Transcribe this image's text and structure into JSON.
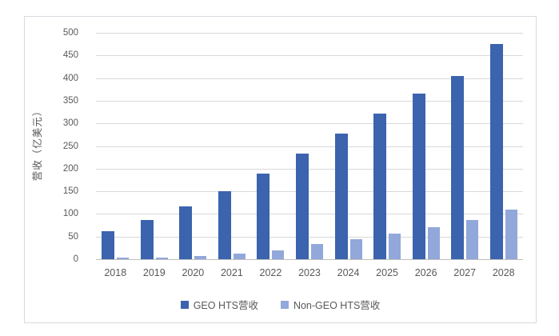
{
  "chart_data": {
    "type": "bar",
    "title": "",
    "xlabel": "",
    "ylabel": "营收（亿美元）",
    "categories": [
      "2018",
      "2019",
      "2020",
      "2021",
      "2022",
      "2023",
      "2024",
      "2025",
      "2026",
      "2027",
      "2028"
    ],
    "series": [
      {
        "key": "geo-hts",
        "name": "GEO HTS营收",
        "color": "#3B63AE",
        "values": [
          62,
          86,
          116,
          150,
          190,
          233,
          278,
          321,
          366,
          405,
          475
        ]
      },
      {
        "key": "non-geo-hts",
        "name": "Non-GEO HTS营收",
        "color": "#92A7DA",
        "values": [
          3,
          4,
          7,
          12,
          19,
          33,
          45,
          57,
          71,
          86,
          110
        ]
      }
    ],
    "ylim": [
      0,
      500
    ],
    "yticks": [
      0,
      50,
      100,
      150,
      200,
      250,
      300,
      350,
      400,
      450,
      500
    ],
    "grid": true,
    "legend_position": "bottom"
  },
  "colors": {
    "background": "#FFFFFF",
    "frame_border": "#D9D9E0",
    "gridline": "#D9D9D9",
    "axis_line": "#BFBFBF",
    "text": "#595959"
  }
}
